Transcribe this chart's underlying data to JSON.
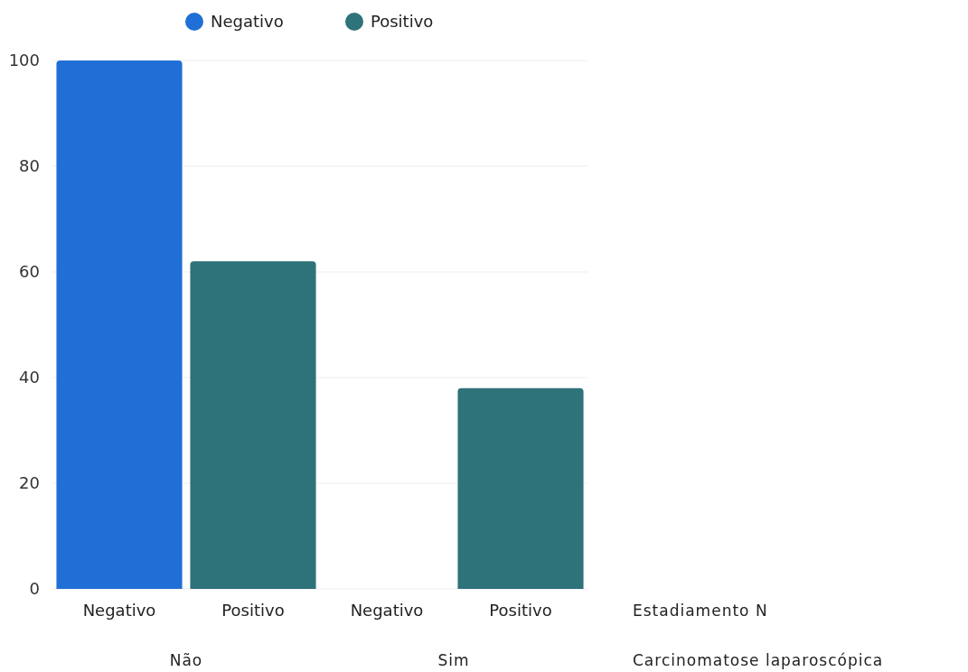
{
  "chart_data": {
    "type": "bar",
    "categories": [
      "Negativo",
      "Positivo",
      "Negativo",
      "Positivo"
    ],
    "series": [
      {
        "name": "Negativo",
        "color": "#1f6fd6",
        "values": [
          100,
          null,
          null,
          null
        ]
      },
      {
        "name": "Positivo",
        "color": "#2e727a",
        "values": [
          null,
          62,
          null,
          38
        ]
      }
    ],
    "xlabel": "Estadiamento N",
    "annotations": [
      "Não",
      "Sim",
      "Carcinomatose laparoscópica"
    ],
    "ylim": [
      0,
      100
    ],
    "yticks": [
      0,
      20,
      40,
      60,
      80,
      100
    ],
    "grid": "y",
    "legend": "top"
  }
}
